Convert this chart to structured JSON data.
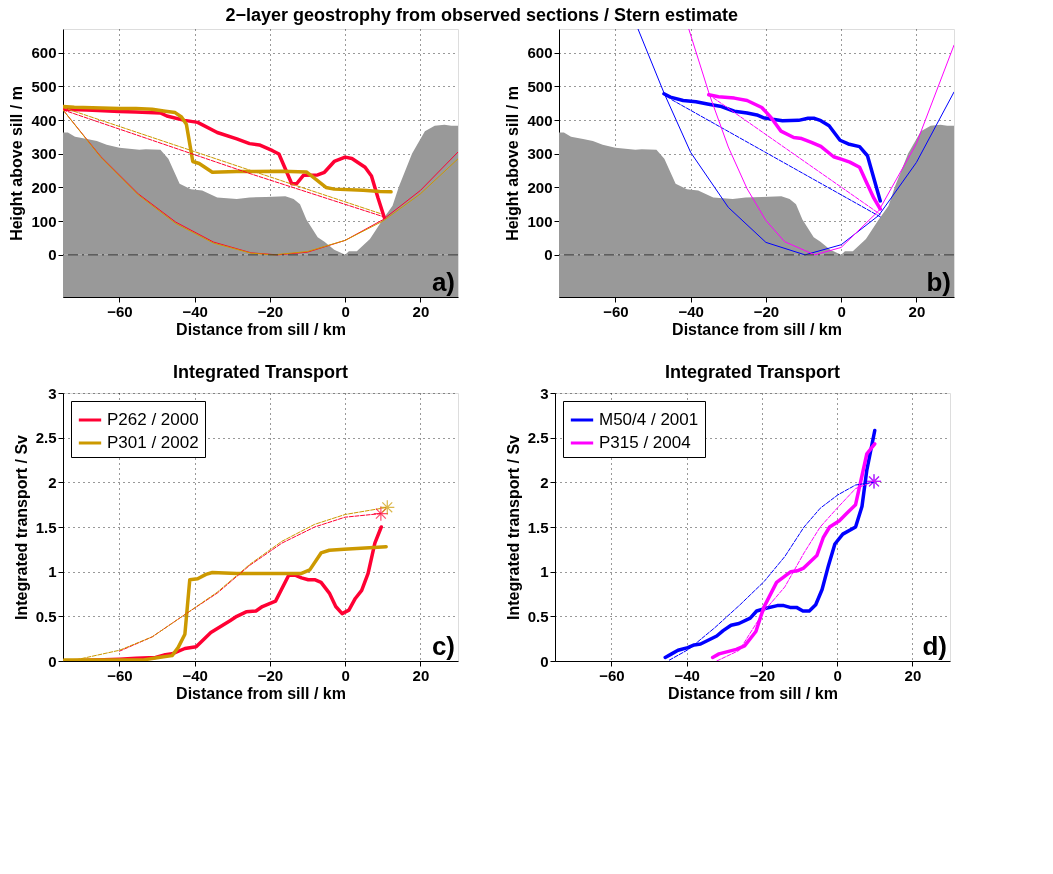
{
  "chart_data": [
    {
      "type": "line",
      "title": "2−layer geostrophy from observed sections / Stern estimate",
      "xlabel": "Distance from sill / km",
      "ylabel": "Height above sill / m",
      "xlim": [
        -75,
        30
      ],
      "ylim": [
        -125,
        670
      ],
      "xticks": [
        -60,
        -40,
        -20,
        0,
        20
      ],
      "yticks": [
        0,
        100,
        200,
        300,
        400,
        500,
        600
      ],
      "grid": true,
      "annotations": [
        "a)"
      ],
      "ref_lines": [
        {
          "axis": "y",
          "value": 0,
          "color": "#333333",
          "line_style": "dashdot"
        }
      ],
      "bands": [
        {
          "axis": "y",
          "from": -125,
          "to": 0,
          "color": "#999999"
        }
      ],
      "series": [
        {
          "type": "area",
          "color": "#999999",
          "x": [
            -75,
            -73.7,
            -71.8,
            -68.6,
            -66,
            -63.4,
            -60,
            -54.7,
            -53,
            -49.1,
            -47,
            -44,
            -41,
            -38,
            -34,
            -28.8,
            -25.4,
            -21,
            -15.9,
            -13.7,
            -12,
            -10.3,
            -7.3,
            -5.5,
            -2.9,
            0,
            1,
            3.1,
            6.6,
            10,
            12.6,
            14.3,
            17.8,
            21.2,
            23.8,
            26.4,
            28.2,
            30
          ],
          "values": [
            363,
            363,
            350,
            344,
            338,
            327,
            318,
            312,
            313,
            312,
            285,
            211,
            195,
            191,
            170,
            166,
            170,
            172,
            174,
            166,
            150,
            105,
            52,
            39,
            15,
            0,
            11,
            11,
            47,
            105,
            146,
            203,
            301,
            367,
            383,
            386,
            383,
            383
          ]
        },
        {
          "color": "#ff0033",
          "x": [
            -75,
            -68.6,
            -60,
            -55.6,
            -49.1,
            -47.4,
            -42.7,
            -39.2,
            -34,
            -28.8,
            -25.4,
            -22.8,
            -19.3,
            -17.6,
            -14.2,
            -12.9,
            -11.1,
            -7.3,
            -5.5,
            -2.9,
            0,
            1.8,
            5.3,
            7,
            8.7,
            10.4
          ],
          "values": [
            432,
            430,
            425,
            424,
            421,
            412,
            399,
            393,
            363,
            344,
            330,
            326,
            309,
            299,
            211,
            211,
            236,
            237,
            245,
            277,
            290,
            286,
            260,
            234,
            170,
            111
          ]
        },
        {
          "color": "#cc9900",
          "x": [
            -75,
            -72,
            -60,
            -55.6,
            -51.3,
            -47.8,
            -45.2,
            -43.5,
            -42.2,
            -40.5,
            -38.8,
            -35.3,
            -28.8,
            -16.8,
            -10.3,
            -8.1,
            -5.1,
            -2.9,
            4.8,
            9.2,
            12.2
          ],
          "values": [
            440,
            438,
            434,
            434,
            432,
            426,
            422,
            409,
            387,
            277,
            271,
            245,
            247,
            248,
            246,
            227,
            200,
            195,
            192,
            188,
            187
          ]
        },
        {
          "color": "#ff0033",
          "line_style": "dashed",
          "x": [
            -75,
            -25,
            10.5
          ],
          "values": [
            430,
            240,
            112
          ]
        },
        {
          "color": "#cc9900",
          "line_style": "dashed",
          "x": [
            -75,
            -25,
            9.5
          ],
          "values": [
            437,
            250,
            122
          ]
        },
        {
          "color": "#ff0033",
          "line_style": "solid",
          "x": [
            -75,
            -65,
            -55,
            -45,
            -35,
            -25,
            -18,
            -10,
            0,
            10,
            20,
            30
          ],
          "values": [
            430,
            292,
            181,
            97,
            38,
            6,
            0,
            8,
            43,
            104,
            191,
            305
          ]
        },
        {
          "color": "#cc9900",
          "line_style": "solid",
          "x": [
            -75,
            -65,
            -55,
            -45,
            -35,
            -25,
            -19,
            -10,
            0,
            10,
            20,
            30
          ],
          "values": [
            430,
            290,
            178,
            93,
            35,
            5,
            0,
            10,
            43,
            100,
            181,
            285
          ]
        }
      ]
    },
    {
      "type": "line",
      "xlabel": "Distance from sill / km",
      "ylabel": "Height above sill / m",
      "xlim": [
        -75,
        30
      ],
      "ylim": [
        -125,
        670
      ],
      "xticks": [
        -60,
        -40,
        -20,
        0,
        20
      ],
      "yticks": [
        0,
        100,
        200,
        300,
        400,
        500,
        600
      ],
      "grid": true,
      "annotations": [
        "b)"
      ],
      "ref_lines": [
        {
          "axis": "y",
          "value": 0,
          "color": "#333333",
          "line_style": "dashdot"
        }
      ],
      "bands": [
        {
          "axis": "y",
          "from": -125,
          "to": 0,
          "color": "#999999"
        }
      ],
      "series": [
        {
          "type": "area",
          "color": "#999999",
          "x": [
            -75,
            -73.7,
            -71.8,
            -68.6,
            -66,
            -63.4,
            -60,
            -54.7,
            -53,
            -49.1,
            -47,
            -44,
            -41,
            -38,
            -34,
            -28.8,
            -25.4,
            -21,
            -15.9,
            -13.7,
            -12,
            -10.3,
            -7.3,
            -5.5,
            -2.9,
            0,
            1,
            3.1,
            6.6,
            10,
            12.6,
            14.3,
            17.8,
            21.2,
            23.8,
            26.4,
            28.2,
            30
          ],
          "values": [
            363,
            363,
            350,
            344,
            338,
            327,
            318,
            312,
            313,
            312,
            285,
            211,
            195,
            191,
            170,
            166,
            170,
            172,
            174,
            166,
            150,
            105,
            52,
            39,
            15,
            0,
            11,
            11,
            47,
            105,
            146,
            203,
            301,
            367,
            383,
            386,
            383,
            383
          ]
        },
        {
          "color": "#0000ff",
          "x": [
            -47.1,
            -45.4,
            -42,
            -38.6,
            -35.2,
            -31.8,
            -28.4,
            -25,
            -22.4,
            -20.7,
            -18.2,
            -15.6,
            -11.3,
            -8.8,
            -7.1,
            -5.4,
            -3.2,
            -0.3,
            1.9,
            4.9,
            7,
            10.4
          ],
          "values": [
            478,
            468,
            458,
            454,
            447,
            440,
            426,
            421,
            415,
            407,
            402,
            398,
            399,
            405,
            405,
            398,
            383,
            340,
            329,
            321,
            294,
            160
          ]
        },
        {
          "color": "#ff00ff",
          "x": [
            -35.2,
            -32.6,
            -28.4,
            -25,
            -21.1,
            -18.6,
            -16,
            -12.6,
            -10.5,
            -7.9,
            -5.4,
            -2,
            0.2,
            2.3,
            4.9,
            7,
            8.7,
            10.4
          ],
          "values": [
            475,
            469,
            465,
            458,
            437,
            407,
            367,
            348,
            345,
            334,
            322,
            291,
            283,
            275,
            260,
            209,
            168,
            136
          ]
        },
        {
          "color": "#0000ff",
          "line_style": "dashed",
          "x": [
            -45,
            10.4
          ],
          "values": [
            460,
            113
          ]
        },
        {
          "color": "#ff00ff",
          "line_style": "dashed",
          "x": [
            -34,
            10.4
          ],
          "values": [
            466,
            120
          ]
        },
        {
          "color": "#0000ff",
          "line_style": "solid",
          "x": [
            -54,
            -47,
            -40,
            -30,
            -20,
            -9.6,
            0,
            10,
            20,
            30
          ],
          "values": [
            670,
            478,
            304,
            141,
            37,
            0,
            30,
            117,
            274,
            483
          ]
        },
        {
          "color": "#ff00ff",
          "line_style": "solid",
          "x": [
            -40.5,
            -35,
            -30,
            -25,
            -20,
            -15,
            -7,
            0,
            10,
            20,
            30
          ],
          "values": [
            670,
            475,
            320,
            196,
            102,
            39,
            0,
            22,
            131,
            330,
            622
          ]
        }
      ]
    },
    {
      "type": "line",
      "title": "Integrated Transport",
      "xlabel": "Distance from sill / km",
      "ylabel": "Integrated transport / Sv",
      "xlim": [
        -75,
        30
      ],
      "ylim": [
        0,
        3
      ],
      "xticks": [
        -60,
        -40,
        -20,
        0,
        20
      ],
      "yticks": [
        0,
        0.5,
        1,
        1.5,
        2,
        2.5,
        3
      ],
      "grid": true,
      "legend": "top left",
      "annotations": [
        "c)"
      ],
      "series": [
        {
          "name": "P262 / 2000",
          "color": "#ff0033",
          "x": [
            -74.6,
            -60,
            -55.6,
            -50.4,
            -47.8,
            -46,
            -42.6,
            -39.6,
            -35.7,
            -30.6,
            -28.8,
            -26.3,
            -23.7,
            -22,
            -18.5,
            -15,
            -13.3,
            -11.6,
            -9.8,
            -8.1,
            -6.4,
            -4.2,
            -2.5,
            -0.8,
            1,
            2.7,
            4.4,
            6.1,
            7.9,
            9.6
          ],
          "values": [
            0,
            0.02,
            0.03,
            0.04,
            0.07,
            0.08,
            0.14,
            0.16,
            0.32,
            0.45,
            0.5,
            0.55,
            0.56,
            0.61,
            0.67,
            0.96,
            0.96,
            0.93,
            0.91,
            0.91,
            0.88,
            0.76,
            0.61,
            0.53,
            0.57,
            0.7,
            0.79,
            0.98,
            1.32,
            1.5
          ]
        },
        {
          "name": "P301 / 2002",
          "color": "#cc9900",
          "x": [
            -74.6,
            -60,
            -53.9,
            -49.6,
            -46,
            -44.4,
            -42.6,
            -41.3,
            -39.2,
            -37,
            -35.3,
            -28.8,
            -11.6,
            -9.4,
            -6.4,
            -4.2,
            -0.3,
            3.1,
            10.9
          ],
          "values": [
            0.01,
            0.01,
            0.01,
            0.04,
            0.06,
            0.15,
            0.3,
            0.91,
            0.92,
            0.97,
            0.99,
            0.98,
            0.98,
            1.02,
            1.21,
            1.24,
            1.25,
            1.26,
            1.28
          ]
        },
        {
          "color": "#ff0033",
          "line_style": "dashed",
          "x": [
            -60,
            -51.3,
            -42.6,
            -34,
            -25.4,
            -16.8,
            -8.1,
            0,
            9.5
          ],
          "values": [
            0.11,
            0.27,
            0.52,
            0.76,
            1.07,
            1.32,
            1.5,
            1.61,
            1.65
          ]
        },
        {
          "color": "#cc9900",
          "line_style": "dashed",
          "x": [
            -73,
            -60,
            -51.3,
            -42.6,
            -34,
            -25.4,
            -16.8,
            -8.1,
            0,
            11.2
          ],
          "values": [
            0,
            0.12,
            0.27,
            0.52,
            0.77,
            1.08,
            1.34,
            1.53,
            1.64,
            1.72
          ]
        },
        {
          "type": "scatter",
          "marker": "cross",
          "color": "#ff0033",
          "x": [
            9.5
          ],
          "values": [
            1.65
          ]
        },
        {
          "type": "scatter",
          "marker": "cross",
          "color": "#cc9900",
          "x": [
            11.2
          ],
          "values": [
            1.72
          ]
        }
      ]
    },
    {
      "type": "line",
      "title": "Integrated Transport",
      "xlabel": "Distance from sill / km",
      "ylabel": "Integrated transport / Sv",
      "xlim": [
        -75,
        30
      ],
      "ylim": [
        0,
        3
      ],
      "xticks": [
        -60,
        -40,
        -20,
        0,
        20
      ],
      "yticks": [
        0,
        0.5,
        1,
        1.5,
        2,
        2.5,
        3
      ],
      "grid": true,
      "legend": "top left",
      "annotations": [
        "d)"
      ],
      "series": [
        {
          "name": "M50/4 / 2001",
          "color": "#0000ff",
          "x": [
            -45.7,
            -44,
            -42.3,
            -39.7,
            -38,
            -36.3,
            -32,
            -30.3,
            -28.2,
            -26.1,
            -23.1,
            -21.4,
            -18.9,
            -15.9,
            -14.2,
            -12.5,
            -10.8,
            -9.1,
            -7.4,
            -5.7,
            -4,
            -2.3,
            -0.6,
            1.5,
            4.9,
            6.6,
            7.9,
            10
          ],
          "values": [
            0.04,
            0.08,
            0.12,
            0.15,
            0.18,
            0.19,
            0.28,
            0.34,
            0.4,
            0.42,
            0.48,
            0.56,
            0.59,
            0.62,
            0.62,
            0.6,
            0.6,
            0.56,
            0.56,
            0.63,
            0.8,
            1.07,
            1.31,
            1.42,
            1.5,
            1.73,
            2.14,
            2.58
          ]
        },
        {
          "name": "P315 / 2004",
          "color": "#ff00ff",
          "x": [
            -33.1,
            -31.4,
            -26.8,
            -24.6,
            -21.6,
            -19.5,
            -16.1,
            -12.3,
            -10.6,
            -8.9,
            -5.4,
            -3.7,
            -2,
            0.6,
            2.5,
            4.9,
            7.9,
            10
          ],
          "values": [
            0.04,
            0.08,
            0.13,
            0.17,
            0.33,
            0.6,
            0.88,
            1.0,
            1.01,
            1.04,
            1.18,
            1.38,
            1.5,
            1.57,
            1.65,
            1.75,
            2.32,
            2.43
          ]
        },
        {
          "type": "scatter",
          "marker": "cross",
          "color": "#0000ff",
          "x": [
            9.8
          ],
          "values": [
            2.01
          ]
        },
        {
          "type": "scatter",
          "marker": "cross",
          "color": "#ff00ff",
          "x": [
            9.8
          ],
          "values": [
            2.01
          ]
        },
        {
          "color": "#ff00ff",
          "line_style": "dashed",
          "x": [
            -32,
            -26,
            -19.4,
            -13.9,
            -8.8,
            -4.5,
            0.2,
            4.9,
            9.8
          ],
          "values": [
            0,
            0.12,
            0.56,
            0.83,
            1.21,
            1.5,
            1.72,
            1.93,
            2.01
          ]
        },
        {
          "color": "#0000ff",
          "line_style": "dashed",
          "x": [
            -44.6,
            -39.5,
            -32.6,
            -25.8,
            -19.4,
            -13.9,
            -8.8,
            -4.5,
            0.2,
            4.9,
            9.6
          ],
          "values": [
            0.01,
            0.13,
            0.37,
            0.63,
            0.89,
            1.17,
            1.5,
            1.71,
            1.86,
            1.97,
            2.0
          ]
        }
      ]
    }
  ]
}
